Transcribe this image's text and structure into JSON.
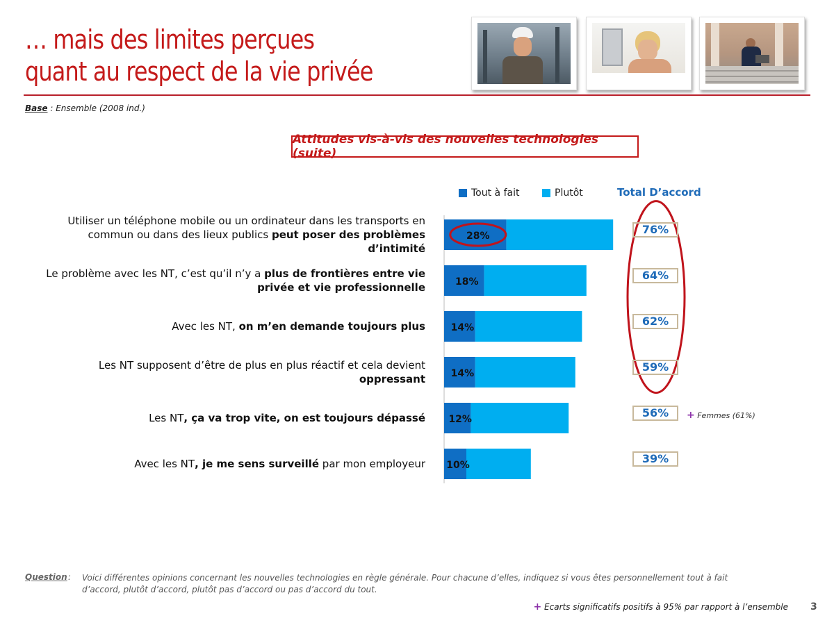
{
  "header": {
    "title_line1": "… mais des limites perçues",
    "title_line2": "quant au respect de la vie privée",
    "base_label": "Base",
    "base_text": " : Ensemble (2008 ind.)"
  },
  "photos": [
    "worker-phone-photo",
    "stressed-woman-photo",
    "man-laptop-stairs-photo"
  ],
  "colors": {
    "tout_a_fait": "#0f6ec4",
    "plutot": "#00aef0",
    "accent": "#c41a1a",
    "total_text": "#1f6bb8"
  },
  "chart_data": {
    "type": "bar",
    "title": "Attitudes vis-à-vis des nouvelles technologies (suite)",
    "legend": [
      "Tout à fait",
      "Plutôt"
    ],
    "total_header": "Total D’accord",
    "categories": [
      {
        "pre": "Utiliser un téléphone mobile ou un ordinateur dans les transports en commun ou dans des lieux publics ",
        "bold": "peut poser des problèmes d’intimité",
        "post": ""
      },
      {
        "pre": "Le problème avec les NT, c’est qu’il n’y a ",
        "bold": "plus de frontières entre vie privée et vie professionnelle",
        "post": ""
      },
      {
        "pre": "Avec les NT, ",
        "bold": "on m’en demande toujours plus",
        "post": ""
      },
      {
        "pre": "Les NT supposent d’être de plus en plus réactif et cela devient ",
        "bold": "oppressant",
        "post": ""
      },
      {
        "pre": "Les NT",
        "bold": ", ça va trop vite, on est toujours dépassé",
        "post": ""
      },
      {
        "pre": "Avec les NT",
        "bold": ", je me sens surveillé",
        "post": " par mon employeur"
      }
    ],
    "series": [
      {
        "name": "Tout à fait",
        "values": [
          28,
          18,
          14,
          14,
          12,
          10
        ],
        "labels": [
          "28%",
          "18%",
          "14%",
          "14%",
          "12%",
          "10%"
        ]
      },
      {
        "name": "Plutôt",
        "values": [
          48,
          46,
          48,
          45,
          44,
          29
        ]
      }
    ],
    "totals": [
      "76%",
      "64%",
      "62%",
      "59%",
      "56%",
      "39%"
    ],
    "annotation": {
      "plus": "+",
      "text": "Femmes (61%)",
      "row": 4
    }
  },
  "footer": {
    "question_label": "Question",
    "question_sep": " :",
    "question_text": "Voici différentes opinions concernant les nouvelles technologies en règle générale. Pour chacune d’elles, indiquez si vous êtes personnellement tout à fait d’accord, plutôt d’accord, plutôt pas d’accord ou pas d’accord du tout.",
    "significance_plus": "+",
    "significance_text": " Ecarts significatifs positifs à 95% par rapport à l’ensemble",
    "page_number": "3"
  }
}
